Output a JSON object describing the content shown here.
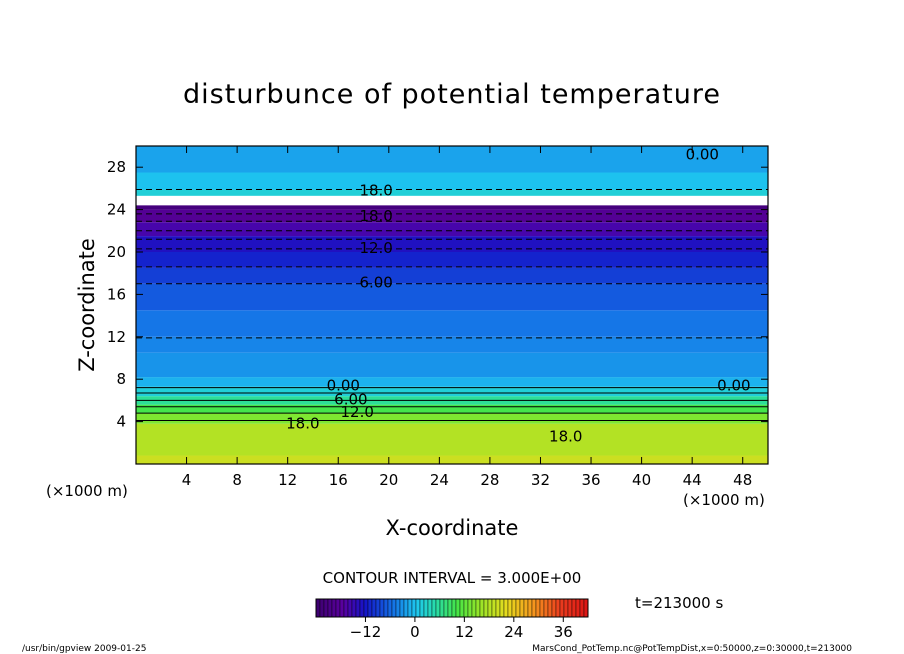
{
  "chart_data": {
    "type": "heatmap",
    "title": "disturbunce of potential temperature",
    "xlabel": "X-coordinate",
    "ylabel": "Z-coordinate",
    "x_unit_left": "(×1000 m)",
    "x_unit_right": "(×1000 m)",
    "xlim": [
      0,
      50
    ],
    "ylim": [
      0,
      30
    ],
    "xticks": [
      4,
      8,
      12,
      16,
      20,
      24,
      28,
      32,
      36,
      40,
      44,
      48
    ],
    "xtick_labels": [
      "4",
      "8",
      "12",
      "16",
      "20",
      "24",
      "28",
      "32",
      "36",
      "40",
      "44",
      "48"
    ],
    "yticks": [
      4,
      8,
      12,
      16,
      20,
      24,
      28
    ],
    "ytick_labels": [
      "4",
      "8",
      "12",
      "16",
      "20",
      "24",
      "28"
    ],
    "contour_interval_text": "CONTOUR INTERVAL = 3.000E+00",
    "time_text": "t=213000 s",
    "colorbar": {
      "min": -24,
      "max": 42,
      "ticks": [
        -12,
        0,
        12,
        24,
        36
      ],
      "tick_labels": [
        "−12",
        "0",
        "12",
        "24",
        "36"
      ]
    },
    "contour_labels": [
      {
        "text": "0.00",
        "x": 44.8,
        "y": 29.2
      },
      {
        "text": "18.0",
        "x": 19.0,
        "y": 25.8
      },
      {
        "text": "18.0",
        "x": 19.0,
        "y": 23.4
      },
      {
        "text": "12.0",
        "x": 19.0,
        "y": 20.4
      },
      {
        "text": "6.00",
        "x": 19.0,
        "y": 17.1
      },
      {
        "text": "0.00",
        "x": 16.4,
        "y": 7.4
      },
      {
        "text": "6.00",
        "x": 17.0,
        "y": 6.1
      },
      {
        "text": "12.0",
        "x": 17.5,
        "y": 4.9
      },
      {
        "text": "18.0",
        "x": 13.2,
        "y": 3.8
      },
      {
        "text": "18.0",
        "x": 34.0,
        "y": 2.6
      },
      {
        "text": "0.00",
        "x": 47.3,
        "y": 7.4
      }
    ],
    "bands": [
      {
        "z0": 0,
        "z1": 0.8,
        "value": 20
      },
      {
        "z0": 0.8,
        "z1": 3.8,
        "value": 18
      },
      {
        "z0": 3.8,
        "z1": 4.8,
        "value": 14
      },
      {
        "z0": 4.8,
        "z1": 5.6,
        "value": 10
      },
      {
        "z0": 5.6,
        "z1": 6.4,
        "value": 6
      },
      {
        "z0": 6.4,
        "z1": 7.3,
        "value": 2
      },
      {
        "z0": 7.3,
        "z1": 8.2,
        "value": -1
      },
      {
        "z0": 8.2,
        "z1": 10.5,
        "value": -3
      },
      {
        "z0": 10.5,
        "z1": 12.0,
        "value": -4
      },
      {
        "z0": 12.0,
        "z1": 14.5,
        "value": -5
      },
      {
        "z0": 14.5,
        "z1": 17.0,
        "value": -7
      },
      {
        "z0": 17.0,
        "z1": 18.5,
        "value": -9
      },
      {
        "z0": 18.5,
        "z1": 20.0,
        "value": -11
      },
      {
        "z0": 20.0,
        "z1": 21.5,
        "value": -13
      },
      {
        "z0": 21.5,
        "z1": 22.8,
        "value": -16
      },
      {
        "z0": 22.8,
        "z1": 24.0,
        "value": -19
      },
      {
        "z0": 24.0,
        "z1": 24.4,
        "value": -22
      },
      {
        "z0": 25.3,
        "z1": 25.9,
        "value": 2
      },
      {
        "z0": 25.9,
        "z1": 27.5,
        "value": 0
      },
      {
        "z0": 27.5,
        "z1": 30.0,
        "value": -2
      }
    ],
    "dashed_levels_z": [
      11.9,
      17.0,
      18.6,
      20.3,
      21.2,
      22.0,
      22.9,
      23.6,
      25.9
    ],
    "solid_levels_z": [
      4.1,
      4.8,
      5.4,
      6.0,
      6.7,
      7.2
    ]
  },
  "footer": {
    "left": "/usr/bin/gpview   2009-01-25",
    "right": "MarsCond_PotTemp.nc@PotTempDist,x=0:50000,z=0:30000,t=213000"
  }
}
